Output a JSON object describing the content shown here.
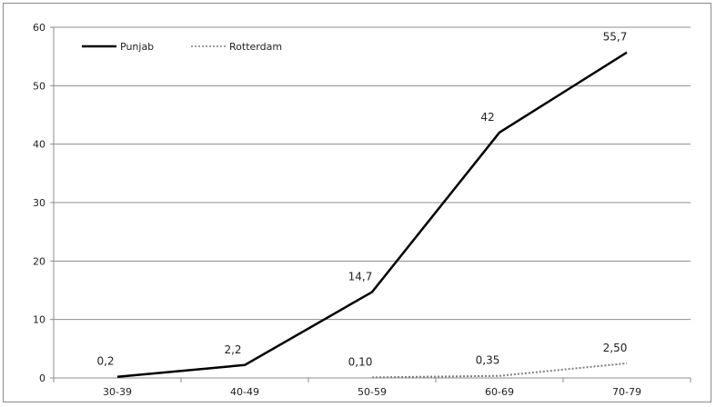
{
  "chart_data": {
    "type": "line",
    "title": "",
    "xlabel": "",
    "ylabel": "",
    "categories": [
      "30-39",
      "40-49",
      "50-59",
      "60-69",
      "70-79"
    ],
    "ylim": [
      0,
      60
    ],
    "yticks": [
      "0",
      "10",
      "20",
      "30",
      "40",
      "50",
      "60"
    ],
    "grid": true,
    "legend_position": "top-left",
    "series": [
      {
        "name": "Punjab",
        "values": [
          0.2,
          2.2,
          14.7,
          42,
          55.7
        ],
        "labels": [
          "0,2",
          "2,2",
          "14,7",
          "42",
          "55,7"
        ],
        "style": "solid",
        "color": "#000000"
      },
      {
        "name": "Rotterdam",
        "values": [
          null,
          null,
          0.1,
          0.35,
          2.5
        ],
        "labels": [
          "",
          "",
          "0,10",
          "0,35",
          "2,50"
        ],
        "style": "dotted",
        "color": "#7f7f7f"
      }
    ]
  }
}
